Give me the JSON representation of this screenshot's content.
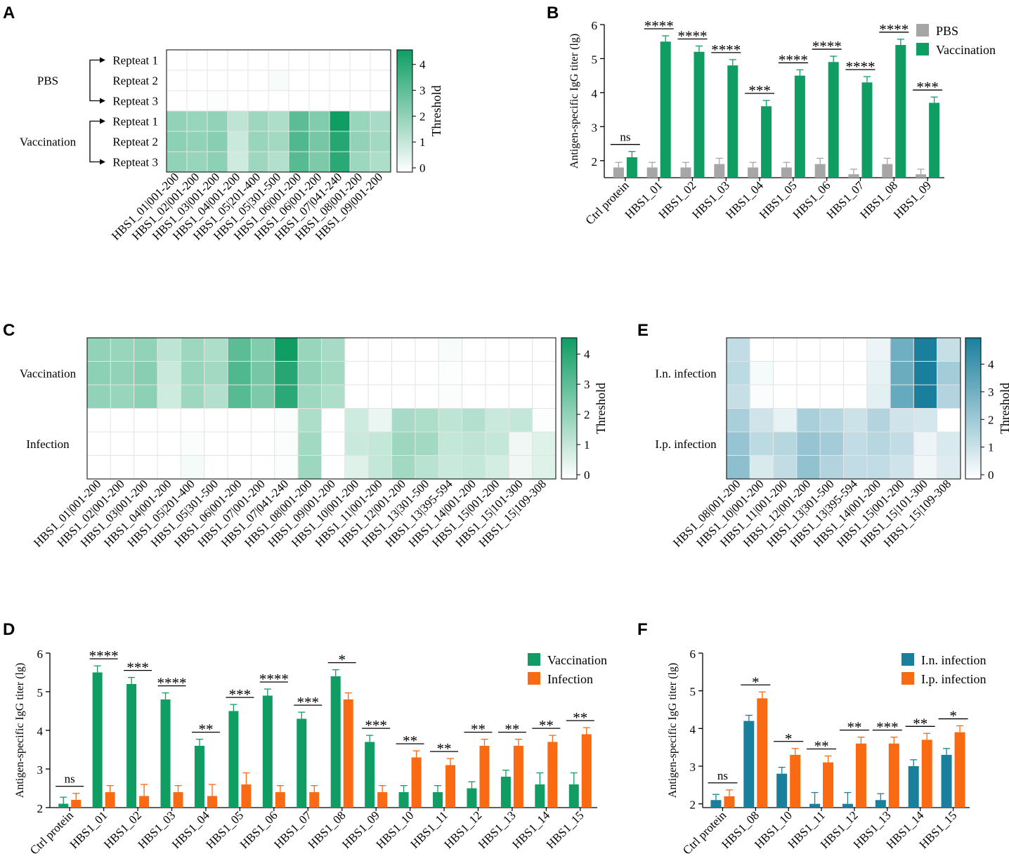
{
  "figure_labels": {
    "A": "A",
    "B": "B",
    "C": "C",
    "D": "D",
    "E": "E",
    "F": "F"
  },
  "colors": {
    "pbs": "#a6a6a6",
    "vaccination": "#0f9d64",
    "infection": "#f96a12",
    "in_infection": "#1a7f9c",
    "ip_infection": "#f96a12",
    "heat_green": "#0f9d64",
    "heat_blue": "#1a7f9c"
  },
  "chart_data": [
    {
      "id": "A",
      "type": "heatmap",
      "colorbar_title": "Threshold",
      "colorbar_ticks": [
        0,
        1,
        2,
        3,
        4
      ],
      "vmin": 0,
      "vmax": 4.4,
      "group_labels": [
        "PBS",
        "Vaccination"
      ],
      "row_labels": [
        "Repteat 1",
        "Repteat 2",
        "Repteat 3",
        "Repteat 1",
        "Repteat 2",
        "Repteat 3"
      ],
      "col_labels": [
        "HBS1_01|001-200",
        "HBS1_02|001-200",
        "HBS1_03|001-200",
        "HBS1_04|001-200",
        "HBS1_05|201-400",
        "HBS1_05|301-500",
        "HBS1_06|001-200",
        "HBS1_06|001-200",
        "HBS1_07|041-240",
        "HBS1_08|001-200",
        "HBS1_09|001-200"
      ],
      "values": [
        [
          0,
          0,
          0,
          0,
          0,
          0,
          0,
          0,
          0,
          0,
          0
        ],
        [
          0,
          0,
          0,
          0,
          0,
          0.15,
          0,
          0,
          0,
          0,
          0
        ],
        [
          0,
          0,
          0.05,
          0,
          0,
          0,
          0,
          0,
          0,
          0,
          0
        ],
        [
          2.0,
          1.9,
          2.0,
          1.2,
          1.8,
          1.5,
          3.0,
          2.3,
          4.4,
          1.9,
          1.6
        ],
        [
          2.1,
          2.0,
          2.2,
          1.0,
          1.9,
          1.7,
          3.2,
          2.5,
          4.0,
          2.0,
          1.7
        ],
        [
          2.0,
          1.9,
          2.1,
          0.9,
          1.8,
          1.4,
          3.1,
          2.4,
          3.9,
          1.8,
          1.5
        ]
      ]
    },
    {
      "id": "B",
      "type": "bar",
      "ylabel": "Antigen-specific IgG titer (lg)",
      "ylim": [
        1.5,
        6
      ],
      "yticks": [
        2,
        3,
        4,
        5,
        6
      ],
      "categories": [
        "Ctrl protein",
        "HBS1_01",
        "HBS1_02",
        "HBS1_03",
        "HBS1_04",
        "HBS1_05",
        "HBS1_06",
        "HBS1_07",
        "HBS1_08",
        "HBS1_09"
      ],
      "series": [
        {
          "name": "PBS",
          "values": [
            1.8,
            1.8,
            1.8,
            1.9,
            1.8,
            1.8,
            1.9,
            1.6,
            1.9,
            1.6
          ],
          "errors": [
            0.15,
            0.15,
            0.15,
            0.17,
            0.15,
            0.15,
            0.17,
            0.15,
            0.17,
            0.15
          ]
        },
        {
          "name": "Vaccination",
          "values": [
            2.1,
            5.5,
            5.2,
            4.8,
            3.6,
            4.5,
            4.9,
            4.3,
            5.4,
            3.7
          ],
          "errors": [
            0.17,
            0.17,
            0.17,
            0.17,
            0.17,
            0.17,
            0.17,
            0.17,
            0.17,
            0.17
          ]
        }
      ],
      "significance": [
        "ns",
        "****",
        "****",
        "****",
        "***",
        "****",
        "****",
        "****",
        "****",
        "***"
      ]
    },
    {
      "id": "C",
      "type": "heatmap",
      "colorbar_title": "Threshold",
      "colorbar_ticks": [
        0,
        1,
        2,
        3,
        4
      ],
      "vmin": 0,
      "vmax": 4.4,
      "group_labels": [
        "Vaccination",
        "Infection"
      ],
      "col_labels": [
        "HBS1_01|001-200",
        "HBS1_02|001-200",
        "HBS1_03|001-200",
        "HBS1_04|001-200",
        "HBS1_05|201-400",
        "HBS1_05|301-500",
        "HBS1_06|001-200",
        "HBS1_07|001-200",
        "HBS1_07|041-240",
        "HBS1_08|001-200",
        "HBS1_09|001-200",
        "HBS1_10|001-200",
        "HBS1_11|001-200",
        "HBS1_12|001-200",
        "HBS1_13|301-500",
        "HBS1_13|395-594",
        "HBS1_14|001-200",
        "HBS1_15|001-200",
        "HBS1_15|101-300",
        "HBS1_15|109-308"
      ],
      "values": [
        [
          2.0,
          1.9,
          2.0,
          1.2,
          1.8,
          1.5,
          3.0,
          2.3,
          4.4,
          1.9,
          1.6,
          0,
          0,
          0,
          0,
          0.15,
          0,
          0,
          0,
          0
        ],
        [
          2.1,
          2.0,
          2.2,
          1.0,
          1.9,
          1.7,
          3.2,
          2.5,
          4.0,
          2.0,
          1.7,
          0,
          0,
          0,
          0,
          0.05,
          0,
          0,
          0,
          0
        ],
        [
          2.0,
          1.9,
          2.1,
          0.9,
          1.8,
          1.4,
          3.1,
          2.4,
          3.9,
          1.8,
          1.5,
          0,
          0,
          0,
          0,
          0.1,
          0,
          0,
          0,
          0
        ],
        [
          0,
          0,
          0,
          0,
          0,
          0,
          0,
          0,
          0.1,
          1.5,
          0,
          0.9,
          0.4,
          1.6,
          1.5,
          1.2,
          1.4,
          1.0,
          1.1,
          0.05
        ],
        [
          0,
          0,
          0,
          0,
          0.1,
          0,
          0,
          0,
          0.1,
          1.7,
          0,
          1.0,
          1.1,
          1.8,
          1.7,
          1.1,
          1.2,
          1.1,
          0.3,
          0.6
        ],
        [
          0,
          0,
          0,
          0,
          0.2,
          0,
          0,
          0,
          0.05,
          1.8,
          0,
          0.6,
          1.1,
          1.7,
          1.3,
          1.0,
          1.1,
          0.8,
          0.3,
          0.6
        ]
      ]
    },
    {
      "id": "D",
      "type": "bar",
      "ylabel": "Antigen-specific IgG titer (lg)",
      "ylim": [
        2,
        6
      ],
      "yticks": [
        2,
        3,
        4,
        5,
        6
      ],
      "categories": [
        "Ctrl protein",
        "HBS1_01",
        "HBS1_02",
        "HBS1_03",
        "HBS1_04",
        "HBS1_05",
        "HBS1_06",
        "HBS1_07",
        "HBS1_08",
        "HBS1_09",
        "HBS1_10",
        "HBS1_11",
        "HBS1_12",
        "HBS1_13",
        "HBS1_14",
        "HBS1_15"
      ],
      "series": [
        {
          "name": "Vaccination",
          "values": [
            2.1,
            5.5,
            5.2,
            4.8,
            3.6,
            4.5,
            4.9,
            4.3,
            5.4,
            3.7,
            2.4,
            2.4,
            2.5,
            2.8,
            2.6,
            2.6
          ],
          "errors": [
            0.17,
            0.17,
            0.17,
            0.17,
            0.17,
            0.17,
            0.17,
            0.17,
            0.17,
            0.17,
            0.17,
            0.17,
            0.17,
            0.17,
            0.3,
            0.3
          ]
        },
        {
          "name": "Infection",
          "values": [
            2.2,
            2.4,
            2.3,
            2.4,
            2.3,
            2.6,
            2.4,
            2.4,
            4.8,
            2.4,
            3.3,
            3.1,
            3.6,
            3.6,
            3.7,
            3.9
          ],
          "errors": [
            0.17,
            0.17,
            0.3,
            0.17,
            0.3,
            0.3,
            0.17,
            0.17,
            0.17,
            0.17,
            0.17,
            0.17,
            0.17,
            0.17,
            0.17,
            0.17
          ]
        }
      ],
      "significance": [
        "ns",
        "****",
        "***",
        "****",
        "**",
        "***",
        "****",
        "***",
        "*",
        "***",
        "**",
        "**",
        "**",
        "**",
        "**",
        "**"
      ]
    },
    {
      "id": "E",
      "type": "heatmap",
      "colorbar_title": "Threshold",
      "colorbar_ticks": [
        0,
        1,
        2,
        3,
        4
      ],
      "vmin": 0,
      "vmax": 4.8,
      "group_labels": [
        "I.n. infection",
        "I.p. infection"
      ],
      "col_labels": [
        "HBS1_08|001-200",
        "HBS1_10|001-200",
        "HBS1_11|001-200",
        "HBS1_12|001-200",
        "HBS1_13|301-500",
        "HBS1_13|395-594",
        "HBS1_14|001-200",
        "HBS1_15|001-200",
        "HBS1_15|101-300",
        "HBS1_15|109-308"
      ],
      "values": [
        [
          1.3,
          0,
          0,
          0,
          0,
          0,
          0.4,
          3.0,
          4.8,
          1.2
        ],
        [
          1.4,
          0.2,
          0,
          0,
          0,
          0,
          0.5,
          3.1,
          4.8,
          1.9
        ],
        [
          1.2,
          0.1,
          0,
          0,
          0,
          0,
          0.6,
          3.2,
          4.8,
          1.6
        ],
        [
          1.8,
          1.0,
          0.5,
          1.8,
          1.5,
          1.1,
          1.6,
          1.0,
          0.9,
          0
        ],
        [
          2.2,
          1.4,
          1.5,
          2.2,
          1.9,
          1.3,
          1.5,
          1.3,
          0.4,
          0.8
        ],
        [
          2.4,
          0.8,
          1.3,
          2.3,
          1.6,
          1.3,
          1.3,
          1.0,
          0.3,
          0.7
        ]
      ]
    },
    {
      "id": "F",
      "type": "bar",
      "ylabel": "Antigen-specific IgG titer (lg)",
      "ylim": [
        1.9,
        6
      ],
      "yticks": [
        2,
        3,
        4,
        5,
        6
      ],
      "categories": [
        "Ctrl protein",
        "HBS1_08",
        "HBS1_10",
        "HBS1_11",
        "HBS1_12",
        "HBS1_13",
        "HBS1_14",
        "HBS1_15"
      ],
      "series": [
        {
          "name": "I.n. infection",
          "values": [
            2.1,
            4.2,
            2.8,
            2.0,
            2.0,
            2.1,
            3.0,
            3.3
          ],
          "errors": [
            0.15,
            0.15,
            0.17,
            0.3,
            0.3,
            0.17,
            0.17,
            0.17
          ]
        },
        {
          "name": "I.p. infection",
          "values": [
            2.2,
            4.8,
            3.3,
            3.1,
            3.6,
            3.6,
            3.7,
            3.9
          ],
          "errors": [
            0.17,
            0.17,
            0.17,
            0.17,
            0.17,
            0.17,
            0.17,
            0.17
          ]
        }
      ],
      "significance": [
        "ns",
        "*",
        "*",
        "**",
        "**",
        "***",
        "**",
        "*"
      ]
    }
  ]
}
